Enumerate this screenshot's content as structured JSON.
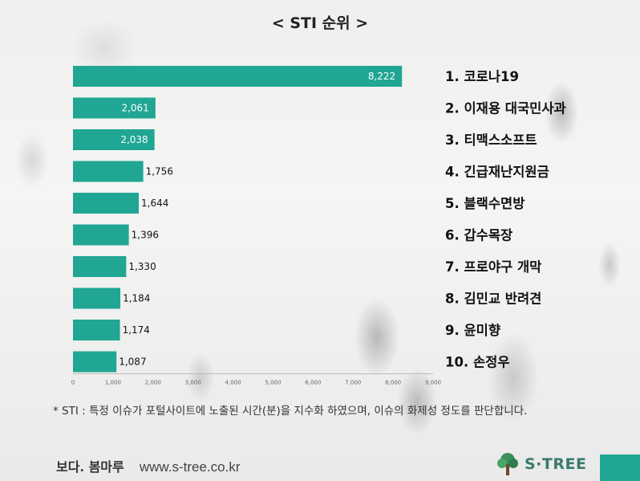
{
  "title": "< STI 순위 >",
  "chart_data": {
    "type": "bar",
    "orientation": "horizontal",
    "categories": [
      "1. 코로나19",
      "2. 이재용 대국민사과",
      "3. 티맥스소프트",
      "4. 긴급재난지원금",
      "5. 블랙수면방",
      "6. 갑수목장",
      "7. 프로야구 개막",
      "8. 김민교 반려견",
      "9. 윤미향",
      "10. 손정우"
    ],
    "values": [
      8222,
      2061,
      2038,
      1756,
      1644,
      1396,
      1330,
      1184,
      1174,
      1087
    ],
    "value_labels": [
      "8,222",
      "2,061",
      "2,038",
      "1,756",
      "1,644",
      "1,396",
      "1,330",
      "1,184",
      "1,174",
      "1,087"
    ],
    "xlim": [
      0,
      9000
    ],
    "xticks": [
      "0",
      "1,000",
      "2,000",
      "3,000",
      "4,000",
      "5,000",
      "6,000",
      "7,000",
      "8,000",
      "9,000"
    ],
    "grid": false,
    "bar_color": "#20a693"
  },
  "footnote": "* STI : 특정 이슈가 포털사이트에 노출된 시간(분)을 지수화 하였으며, 이슈의 화제성 정도를 판단합니다.",
  "footer": {
    "slogan": "보다. 봄마루",
    "url": "www.s-tree.co.kr",
    "logo_text": "S·TREE",
    "logo_icon": "tree-icon"
  }
}
